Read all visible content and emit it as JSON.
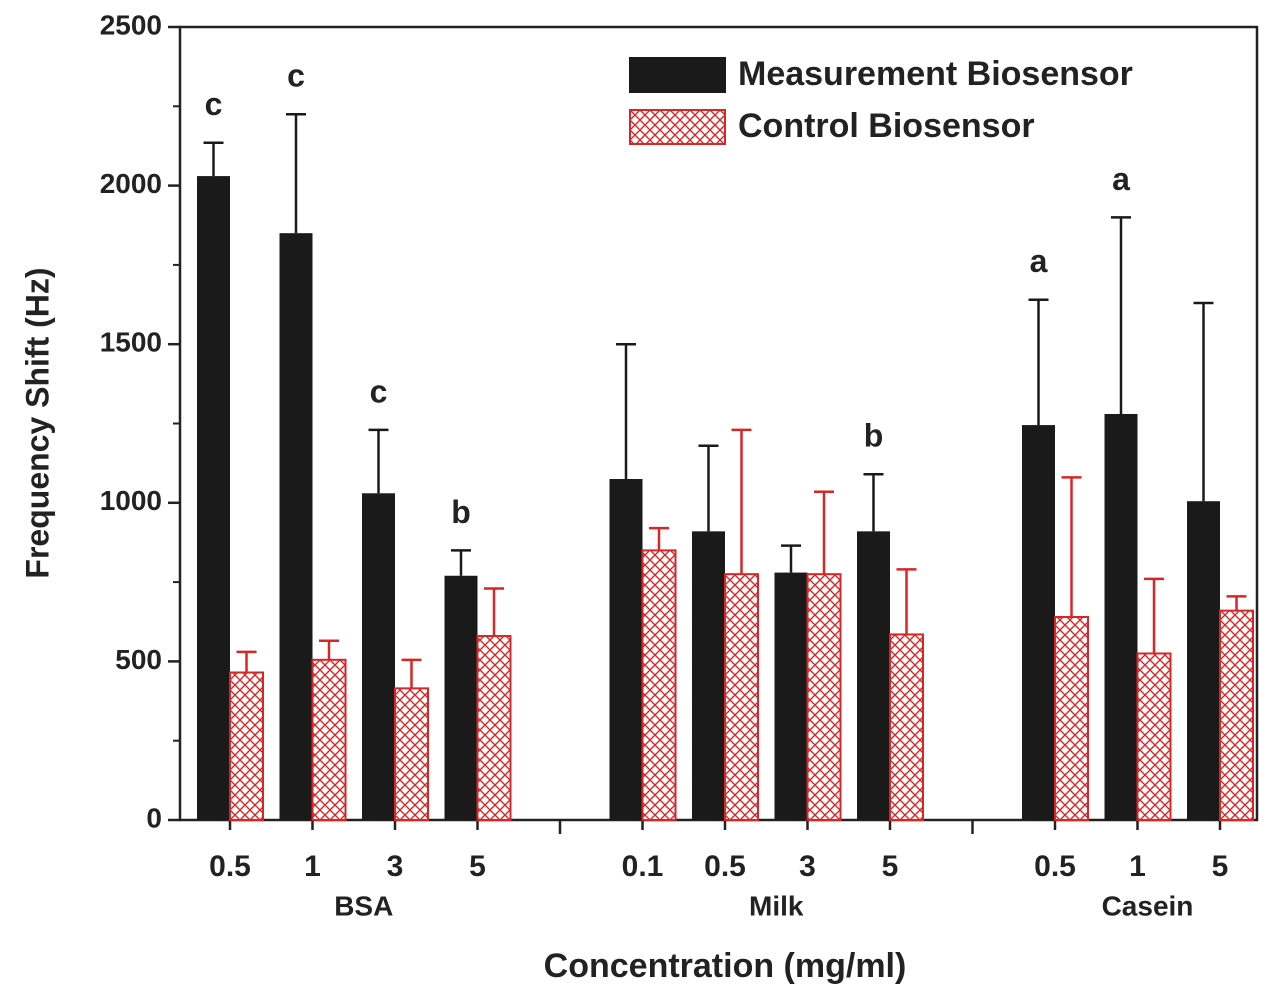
{
  "chart_data": {
    "type": "bar",
    "y_label": "Frequency Shift (Hz)",
    "x_label": "Concentration (mg/ml)",
    "groups": [
      {
        "label": "BSA",
        "categories": [
          "0.5",
          "1",
          "3",
          "5"
        ]
      },
      {
        "label": "Milk",
        "categories": [
          "0.1",
          "0.5",
          "3",
          "5"
        ]
      },
      {
        "label": "Casein",
        "categories": [
          "0.5",
          "1",
          "5"
        ]
      }
    ],
    "series": [
      {
        "name": "Measurement Biosensor",
        "color": "#1a1a1a",
        "fill": "solid",
        "values": [
          2030,
          1850,
          1030,
          770,
          1075,
          910,
          780,
          910,
          1245,
          1280,
          1005
        ],
        "errors": [
          105,
          375,
          200,
          80,
          425,
          270,
          85,
          180,
          395,
          620,
          625
        ],
        "letters": [
          "c",
          "c",
          "c",
          "b",
          null,
          null,
          null,
          "b",
          "a",
          "a",
          null
        ]
      },
      {
        "name": "Control Biosensor",
        "color": "#d62728",
        "fill": "crosshatch",
        "values": [
          465,
          505,
          415,
          580,
          850,
          775,
          775,
          585,
          640,
          525,
          660
        ],
        "errors": [
          65,
          60,
          90,
          150,
          70,
          455,
          260,
          205,
          440,
          235,
          45
        ]
      }
    ],
    "ylim": [
      0,
      2500
    ],
    "yticks": [
      0,
      500,
      1000,
      1500,
      2000,
      2500
    ],
    "yminorticks": [
      250,
      750,
      1250,
      1750,
      2250
    ],
    "legend": "top-right"
  }
}
